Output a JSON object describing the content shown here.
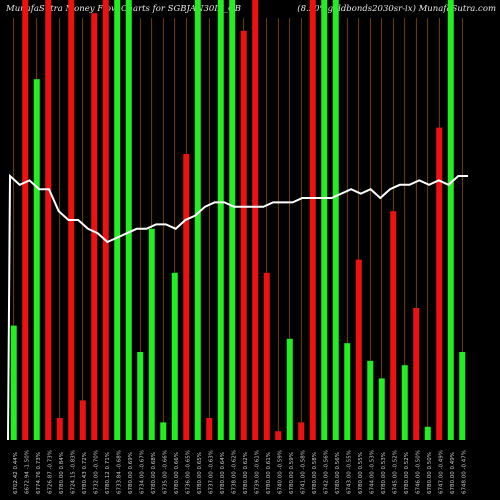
{
  "header": {
    "left_title": "MunafaSutra Money Flow Charts for SGBJAN30IX_GB",
    "right_title": "(8.50%goldbonds2030sr-ix) MunafaSutra.com"
  },
  "chart_data": {
    "type": "bar",
    "title": "",
    "xlabel": "",
    "ylabel": "",
    "colors": {
      "up": "#22ee22",
      "down": "#ee1111",
      "line": "#ffffff",
      "grid": "#b86a00",
      "background": "#000000"
    },
    "categories": [
      "6702.42 0.44%",
      "6672.94 -1.50%",
      "6774.76 0.73%",
      "6726.87 -0.73%",
      "6780.00 0.84%",
      "6724.15 -0.83%",
      "6780.43 0.72%",
      "6732.00 -0.70%",
      "6780.12 0.71%",
      "6733.84 -0.68%",
      "6780.00 0.69%",
      "6734.00 -0.67%",
      "6780.00 0.68%",
      "6735.00 -0.66%",
      "6780.00 0.66%",
      "6736.00 -0.65%",
      "6780.00 0.65%",
      "6737.00 -0.63%",
      "6780.00 0.64%",
      "6738.00 -0.62%",
      "6780.00 0.62%",
      "6739.00 -0.61%",
      "6780.00 0.61%",
      "6740.00 -0.59%",
      "6780.00 0.59%",
      "6741.00 -0.58%",
      "6780.00 0.58%",
      "6742.00 -0.56%",
      "6780.00 0.56%",
      "6743.00 -0.55%",
      "6780.00 0.55%",
      "6744.00 -0.53%",
      "6780.00 0.53%",
      "6745.00 -0.52%",
      "6780.00 0.52%",
      "6746.00 -0.50%",
      "6780.00 0.50%",
      "6747.00 -0.49%",
      "6780.00 0.49%",
      "6748.00 -0.47%"
    ],
    "bars": [
      {
        "dir": "up",
        "value": 26
      },
      {
        "dir": "down",
        "value": 100
      },
      {
        "dir": "up",
        "value": 82
      },
      {
        "dir": "down",
        "value": 100
      },
      {
        "dir": "down",
        "value": 5
      },
      {
        "dir": "down",
        "value": 100
      },
      {
        "dir": "down",
        "value": 9
      },
      {
        "dir": "down",
        "value": 97
      },
      {
        "dir": "down",
        "value": 100
      },
      {
        "dir": "up",
        "value": 100
      },
      {
        "dir": "up",
        "value": 100
      },
      {
        "dir": "up",
        "value": 20
      },
      {
        "dir": "up",
        "value": 48
      },
      {
        "dir": "up",
        "value": 4
      },
      {
        "dir": "up",
        "value": 38
      },
      {
        "dir": "down",
        "value": 65
      },
      {
        "dir": "up",
        "value": 100
      },
      {
        "dir": "down",
        "value": 5
      },
      {
        "dir": "up",
        "value": 100
      },
      {
        "dir": "up",
        "value": 100
      },
      {
        "dir": "down",
        "value": 93
      },
      {
        "dir": "down",
        "value": 100
      },
      {
        "dir": "down",
        "value": 38
      },
      {
        "dir": "down",
        "value": 2
      },
      {
        "dir": "up",
        "value": 23
      },
      {
        "dir": "down",
        "value": 4
      },
      {
        "dir": "down",
        "value": 100
      },
      {
        "dir": "up",
        "value": 100
      },
      {
        "dir": "up",
        "value": 100
      },
      {
        "dir": "up",
        "value": 22
      },
      {
        "dir": "down",
        "value": 41
      },
      {
        "dir": "up",
        "value": 18
      },
      {
        "dir": "up",
        "value": 14
      },
      {
        "dir": "down",
        "value": 52
      },
      {
        "dir": "up",
        "value": 17
      },
      {
        "dir": "down",
        "value": 30
      },
      {
        "dir": "up",
        "value": 3
      },
      {
        "dir": "down",
        "value": 71
      },
      {
        "dir": "up",
        "value": 100
      },
      {
        "dir": "up",
        "value": 20
      }
    ],
    "flow_line": [
      60,
      58,
      59,
      57,
      57,
      52,
      50,
      50,
      48,
      47,
      45,
      46,
      47,
      48,
      48,
      49,
      49,
      48,
      50,
      51,
      53,
      54,
      54,
      53,
      53,
      53,
      53,
      54,
      54,
      54,
      55,
      55,
      55,
      55,
      56,
      57,
      56,
      57,
      55,
      57,
      58,
      58,
      59,
      58,
      59,
      58,
      60,
      60
    ],
    "ylim": [
      0,
      100
    ]
  }
}
